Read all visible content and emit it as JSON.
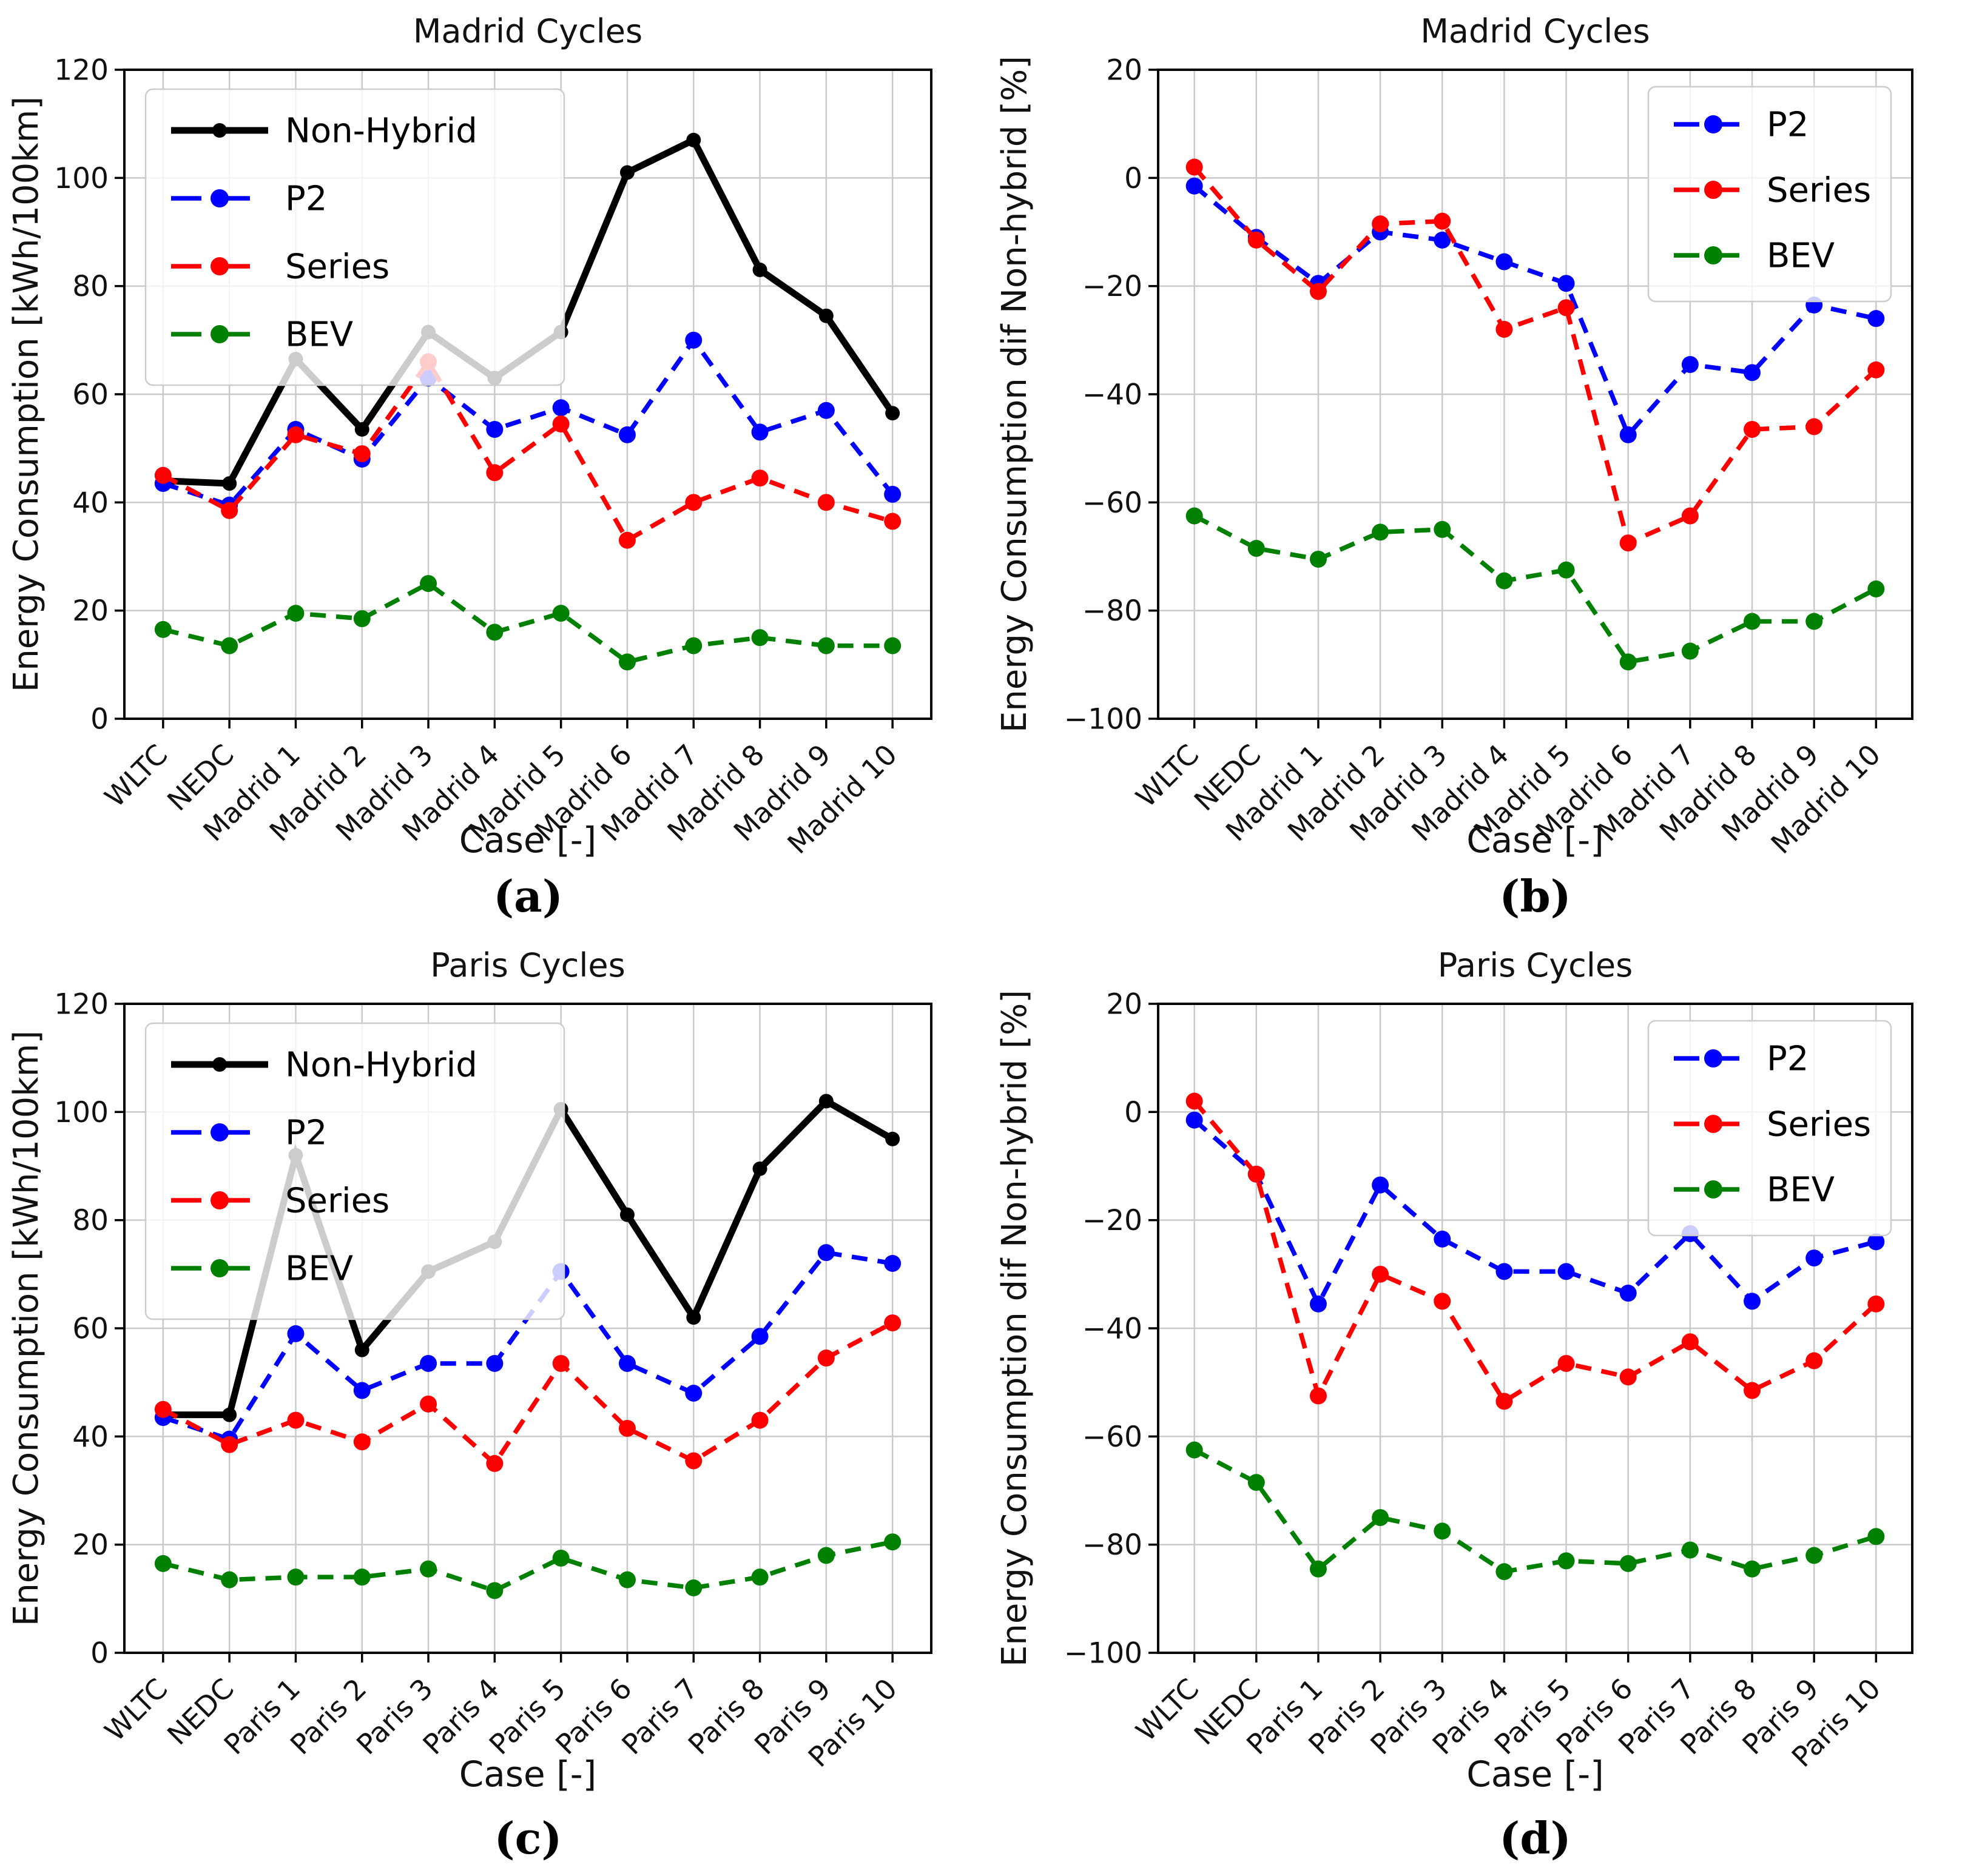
{
  "figure": {
    "background": "#ffffff",
    "description": "2x2 grid of line charts comparing powertrain energy consumption over driving cycles"
  },
  "colors": {
    "non_hybrid": "#000000",
    "p2": "#0000ff",
    "series": "#ff0000",
    "bev": "#008000",
    "grid": "#c9c9c9",
    "spine": "#000000",
    "text": "#111111",
    "legend_border": "#cccccc",
    "legend_fill": "rgba(255,255,255,0.8)"
  },
  "chart_data": [
    {
      "id": "a",
      "type": "line",
      "title": "Madrid Cycles",
      "xlabel": "Case [-]",
      "ylabel": "Energy Consumption [kWh/100km]",
      "ylim": [
        0,
        120
      ],
      "yticks": [
        0,
        20,
        40,
        60,
        80,
        100,
        120
      ],
      "grid": true,
      "legend_position": "upper-left",
      "caption": "(a)",
      "categories": [
        "WLTC",
        "NEDC",
        "Madrid 1",
        "Madrid 2",
        "Madrid 3",
        "Madrid 4",
        "Madrid 5",
        "Madrid 6",
        "Madrid 7",
        "Madrid 8",
        "Madrid 9",
        "Madrid 10"
      ],
      "series": [
        {
          "name": "Non-Hybrid",
          "color": "#000000",
          "line": "solid",
          "marker": "circle",
          "values": [
            44,
            43.5,
            66.5,
            53.5,
            71.5,
            63,
            71.5,
            101,
            107,
            83,
            74.5,
            56.5
          ]
        },
        {
          "name": "P2",
          "color": "#0000ff",
          "line": "dashed",
          "marker": "circle",
          "values": [
            43.5,
            39.5,
            53.5,
            48,
            63,
            53.5,
            57.5,
            52.5,
            70,
            53,
            57,
            41.5
          ]
        },
        {
          "name": "Series",
          "color": "#ff0000",
          "line": "dashed",
          "marker": "circle",
          "values": [
            45,
            38.5,
            52.5,
            49,
            66,
            45.5,
            54.5,
            33,
            40,
            44.5,
            40,
            36.5
          ]
        },
        {
          "name": "BEV",
          "color": "#008000",
          "line": "dashed",
          "marker": "circle",
          "values": [
            16.5,
            13.5,
            19.5,
            18.5,
            25,
            16,
            19.5,
            10.5,
            13.5,
            15,
            13.5,
            13.5
          ]
        }
      ]
    },
    {
      "id": "b",
      "type": "line",
      "title": "Madrid Cycles",
      "xlabel": "Case [-]",
      "ylabel": "Energy Consumption dif Non-hybrid [%]",
      "ylim": [
        -100,
        20
      ],
      "yticks": [
        -100,
        -80,
        -60,
        -40,
        -20,
        0,
        20
      ],
      "grid": true,
      "legend_position": "upper-right",
      "caption": "(b)",
      "categories": [
        "WLTC",
        "NEDC",
        "Madrid 1",
        "Madrid 2",
        "Madrid 3",
        "Madrid 4",
        "Madrid 5",
        "Madrid 6",
        "Madrid 7",
        "Madrid 8",
        "Madrid 9",
        "Madrid 10"
      ],
      "series": [
        {
          "name": "P2",
          "color": "#0000ff",
          "line": "dashed",
          "marker": "circle",
          "values": [
            -1.5,
            -11,
            -19.5,
            -10,
            -11.5,
            -15.5,
            -19.5,
            -47.5,
            -34.5,
            -36,
            -23.5,
            -26
          ]
        },
        {
          "name": "Series",
          "color": "#ff0000",
          "line": "dashed",
          "marker": "circle",
          "values": [
            2,
            -11.5,
            -21,
            -8.5,
            -8,
            -28,
            -24,
            -67.5,
            -62.5,
            -46.5,
            -46,
            -35.5
          ]
        },
        {
          "name": "BEV",
          "color": "#008000",
          "line": "dashed",
          "marker": "circle",
          "values": [
            -62.5,
            -68.5,
            -70.5,
            -65.5,
            -65,
            -74.5,
            -72.5,
            -89.5,
            -87.5,
            -82,
            -82,
            -76
          ]
        }
      ]
    },
    {
      "id": "c",
      "type": "line",
      "title": "Paris Cycles",
      "xlabel": "Case [-]",
      "ylabel": "Energy Consumption [kWh/100km]",
      "ylim": [
        0,
        120
      ],
      "yticks": [
        0,
        20,
        40,
        60,
        80,
        100,
        120
      ],
      "grid": true,
      "legend_position": "upper-left",
      "caption": "(c)",
      "categories": [
        "WLTC",
        "NEDC",
        "Paris 1",
        "Paris 2",
        "Paris 3",
        "Paris 4",
        "Paris 5",
        "Paris 6",
        "Paris 7",
        "Paris 8",
        "Paris 9",
        "Paris 10"
      ],
      "series": [
        {
          "name": "Non-Hybrid",
          "color": "#000000",
          "line": "solid",
          "marker": "circle",
          "values": [
            44,
            44,
            92,
            56,
            70.5,
            76,
            100.5,
            81,
            62,
            89.5,
            102,
            95
          ]
        },
        {
          "name": "P2",
          "color": "#0000ff",
          "line": "dashed",
          "marker": "circle",
          "values": [
            43.5,
            39.5,
            59,
            48.5,
            53.5,
            53.5,
            70.5,
            53.5,
            48,
            58.5,
            74,
            72
          ]
        },
        {
          "name": "Series",
          "color": "#ff0000",
          "line": "dashed",
          "marker": "circle",
          "values": [
            45,
            38.5,
            43,
            39,
            46,
            35,
            53.5,
            41.5,
            35.5,
            43,
            54.5,
            61
          ]
        },
        {
          "name": "BEV",
          "color": "#008000",
          "line": "dashed",
          "marker": "circle",
          "values": [
            16.5,
            13.5,
            14,
            14,
            15.5,
            11.5,
            17.5,
            13.5,
            12,
            14,
            18,
            20.5
          ]
        }
      ]
    },
    {
      "id": "d",
      "type": "line",
      "title": "Paris Cycles",
      "xlabel": "Case [-]",
      "ylabel": "Energy Consumption dif Non-hybrid [%]",
      "ylim": [
        -100,
        20
      ],
      "yticks": [
        -100,
        -80,
        -60,
        -40,
        -20,
        0,
        20
      ],
      "grid": true,
      "legend_position": "upper-right",
      "caption": "(d)",
      "categories": [
        "WLTC",
        "NEDC",
        "Paris 1",
        "Paris 2",
        "Paris 3",
        "Paris 4",
        "Paris 5",
        "Paris 6",
        "Paris 7",
        "Paris 8",
        "Paris 9",
        "Paris 10"
      ],
      "series": [
        {
          "name": "P2",
          "color": "#0000ff",
          "line": "dashed",
          "marker": "circle",
          "values": [
            -1.5,
            -11.5,
            -35.5,
            -13.5,
            -23.5,
            -29.5,
            -29.5,
            -33.5,
            -22.5,
            -35,
            -27,
            -24
          ]
        },
        {
          "name": "Series",
          "color": "#ff0000",
          "line": "dashed",
          "marker": "circle",
          "values": [
            2,
            -11.5,
            -52.5,
            -30,
            -35,
            -53.5,
            -46.5,
            -49,
            -42.5,
            -51.5,
            -46,
            -35.5
          ]
        },
        {
          "name": "BEV",
          "color": "#008000",
          "line": "dashed",
          "marker": "circle",
          "values": [
            -62.5,
            -68.5,
            -84.5,
            -75,
            -77.5,
            -85,
            -83,
            -83.5,
            -81,
            -84.5,
            -82,
            -78.5
          ]
        }
      ]
    }
  ]
}
